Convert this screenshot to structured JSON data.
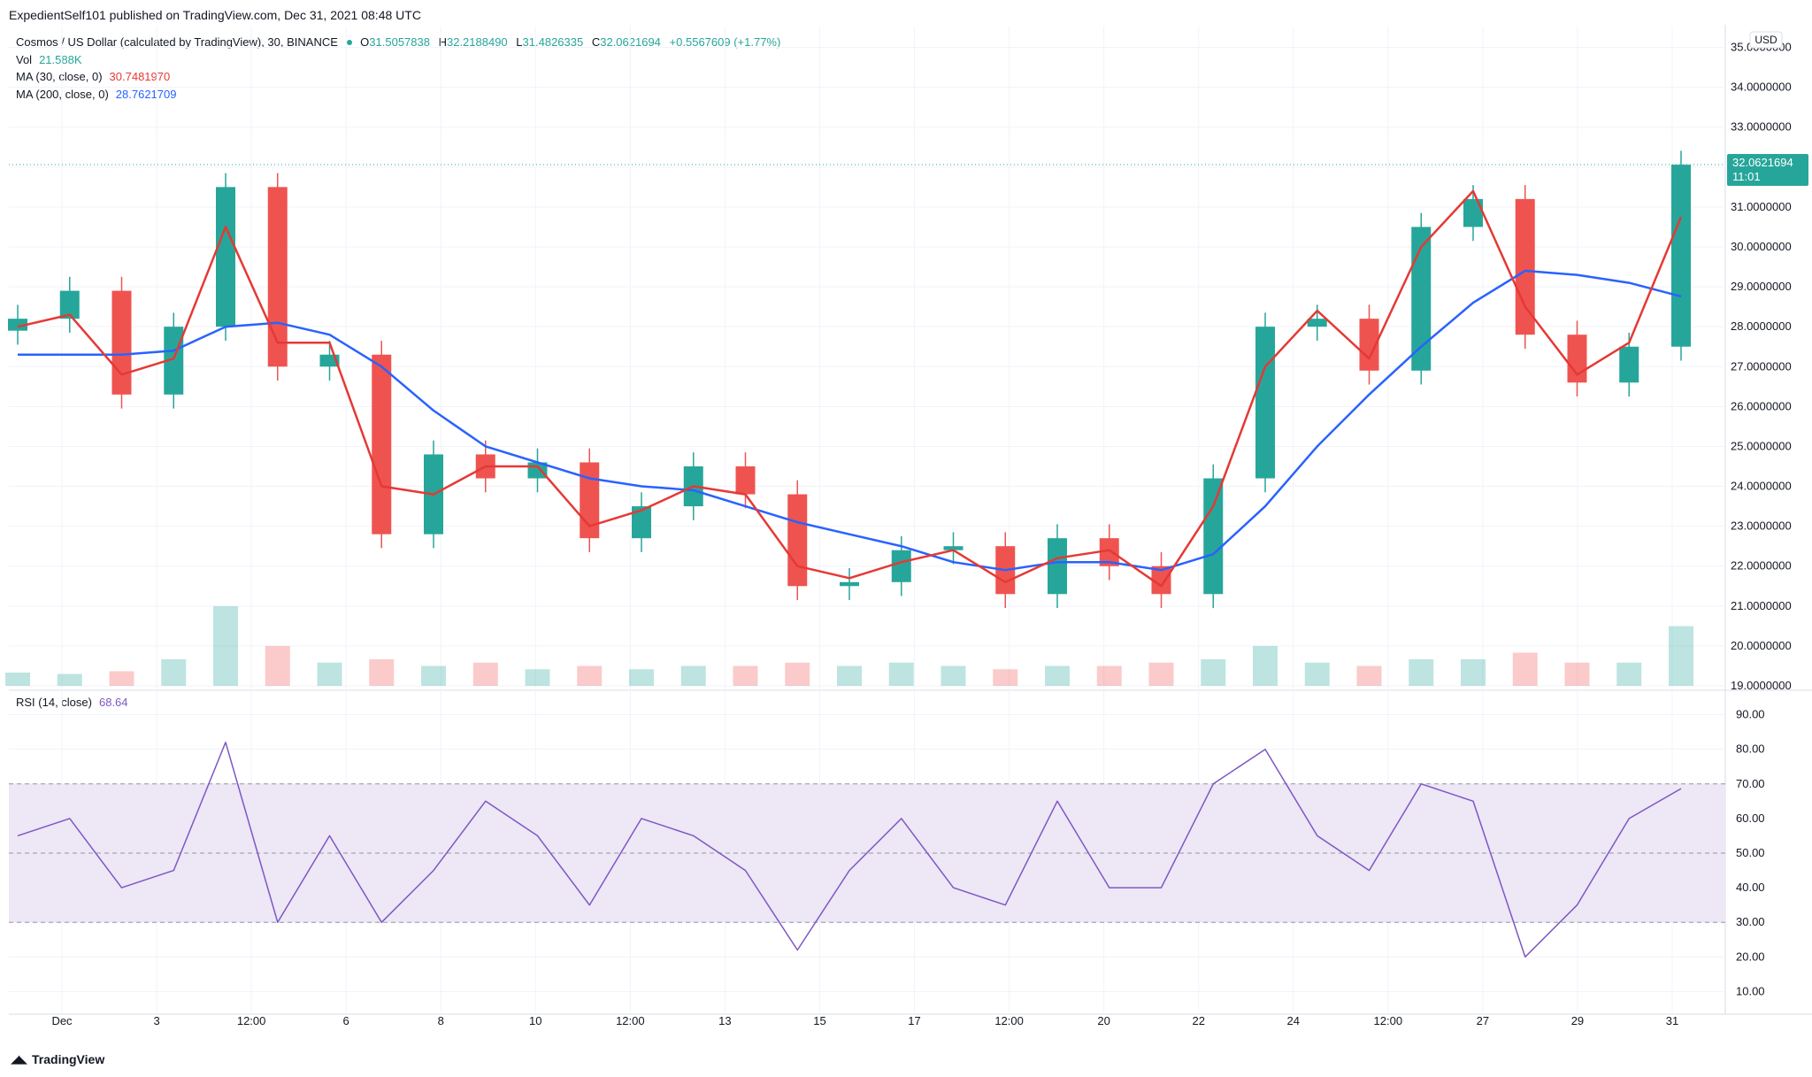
{
  "publisher_line": "ExpedientSelf101 published on TradingView.com, Dec 31, 2021 08:48 UTC",
  "symbol": {
    "title": "Cosmos / US Dollar (calculated by TradingView), 30, BINANCE",
    "o_label": "O",
    "o_value": "31.5057838",
    "h_label": "H",
    "h_value": "32.2188490",
    "l_label": "L",
    "l_value": "31.4826335",
    "c_label": "C",
    "c_value": "32.0621694",
    "change": "+0.5567609 (+1.77%)"
  },
  "indicators": {
    "vol_label": "Vol",
    "vol_value": "21.588K",
    "ma30_label": "MA (30, close, 0)",
    "ma30_value": "30.7481970",
    "ma200_label": "MA (200, close, 0)",
    "ma200_value": "28.7621709",
    "rsi_label": "RSI (14, close)",
    "rsi_value": "68.64"
  },
  "price_axis": {
    "currency": "USD",
    "last_price": "32.0621694",
    "countdown": "11:01",
    "ticks": [
      "35.0000000",
      "34.0000000",
      "33.0000000",
      "32.0000000",
      "31.0000000",
      "30.0000000",
      "29.0000000",
      "28.0000000",
      "27.0000000",
      "26.0000000",
      "25.0000000",
      "24.0000000",
      "23.0000000",
      "22.0000000",
      "21.0000000",
      "20.0000000",
      "19.0000000"
    ]
  },
  "rsi_axis": {
    "ticks": [
      "90.00",
      "80.00",
      "70.00",
      "60.00",
      "50.00",
      "40.00",
      "30.00",
      "20.00",
      "10.00"
    ]
  },
  "time_axis": {
    "labels": [
      "Dec",
      "3",
      "12:00",
      "6",
      "8",
      "10",
      "12:00",
      "13",
      "15",
      "17",
      "12:00",
      "20",
      "22",
      "24",
      "12:00",
      "27",
      "29",
      "31"
    ]
  },
  "colors": {
    "up": "#26a69a",
    "down": "#ef5350",
    "ma30": "#e53935",
    "ma200": "#2962ff",
    "rsi": "#7e57c2",
    "rsi_band": "#ede7f6",
    "grid": "#f0f3fa",
    "text": "#131722"
  },
  "brand": "TradingView",
  "chart_data": [
    {
      "type": "candlestick",
      "title": "Cosmos / US Dollar (calculated by TradingView), 30, BINANCE",
      "ylim": [
        19.0,
        35.3
      ],
      "x": [
        "Nov 30",
        "Dec 1",
        "Dec 2",
        "Dec 3",
        "Dec 3 12:00",
        "Dec 4",
        "Dec 5",
        "Dec 6",
        "Dec 7",
        "Dec 8",
        "Dec 9",
        "Dec 10",
        "Dec 11",
        "Dec 12",
        "Dec 13",
        "Dec 14",
        "Dec 15",
        "Dec 16",
        "Dec 17",
        "Dec 18",
        "Dec 19",
        "Dec 20",
        "Dec 21",
        "Dec 22",
        "Dec 23",
        "Dec 24",
        "Dec 25",
        "Dec 26",
        "Dec 27",
        "Dec 28",
        "Dec 29",
        "Dec 30",
        "Dec 31"
      ],
      "series": [
        {
          "name": "Price",
          "values": [
            28.2,
            28.9,
            26.3,
            28.0,
            31.5,
            27.0,
            27.3,
            22.8,
            24.8,
            24.2,
            24.6,
            22.7,
            23.5,
            24.5,
            23.8,
            21.5,
            21.6,
            22.4,
            22.5,
            21.3,
            22.7,
            22.0,
            21.3,
            24.2,
            28.0,
            28.2,
            26.9,
            30.5,
            31.2,
            27.8,
            26.6,
            27.5,
            32.06
          ]
        },
        {
          "name": "MA (30, close, 0)",
          "values": [
            28.0,
            28.3,
            26.8,
            27.2,
            30.5,
            27.6,
            27.6,
            24.0,
            23.8,
            24.5,
            24.5,
            23.0,
            23.4,
            24.0,
            23.8,
            22.0,
            21.7,
            22.1,
            22.4,
            21.6,
            22.2,
            22.4,
            21.5,
            23.5,
            27.0,
            28.4,
            27.2,
            30.0,
            31.4,
            28.5,
            26.8,
            27.6,
            30.75
          ]
        },
        {
          "name": "MA (200, close, 0)",
          "values": [
            27.3,
            27.3,
            27.3,
            27.4,
            28.0,
            28.1,
            27.8,
            27.0,
            25.9,
            25.0,
            24.6,
            24.2,
            24.0,
            23.9,
            23.5,
            23.1,
            22.8,
            22.5,
            22.1,
            21.9,
            22.1,
            22.1,
            21.9,
            22.3,
            23.5,
            25.0,
            26.3,
            27.5,
            28.6,
            29.4,
            29.3,
            29.1,
            28.76
          ]
        }
      ]
    },
    {
      "type": "bar",
      "title": "Vol",
      "x": [
        "Nov 30",
        "Dec 1",
        "Dec 2",
        "Dec 3",
        "Dec 3 12:00",
        "Dec 4",
        "Dec 5",
        "Dec 6",
        "Dec 7",
        "Dec 8",
        "Dec 9",
        "Dec 10",
        "Dec 11",
        "Dec 12",
        "Dec 13",
        "Dec 14",
        "Dec 15",
        "Dec 16",
        "Dec 17",
        "Dec 18",
        "Dec 19",
        "Dec 20",
        "Dec 21",
        "Dec 22",
        "Dec 23",
        "Dec 24",
        "Dec 25",
        "Dec 26",
        "Dec 27",
        "Dec 28",
        "Dec 29",
        "Dec 30",
        "Dec 31"
      ],
      "values": [
        20,
        18,
        22,
        40,
        120,
        60,
        35,
        40,
        30,
        35,
        25,
        30,
        25,
        30,
        30,
        35,
        30,
        35,
        30,
        25,
        30,
        30,
        35,
        40,
        60,
        35,
        30,
        40,
        40,
        50,
        35,
        35,
        90
      ]
    },
    {
      "type": "line",
      "title": "RSI (14, close)",
      "ylim": [
        5,
        95
      ],
      "bands": [
        30,
        50,
        70
      ],
      "x": [
        "Nov 30",
        "Dec 1",
        "Dec 2",
        "Dec 3",
        "Dec 3 12:00",
        "Dec 4",
        "Dec 5",
        "Dec 6",
        "Dec 7",
        "Dec 8",
        "Dec 9",
        "Dec 10",
        "Dec 11",
        "Dec 12",
        "Dec 13",
        "Dec 14",
        "Dec 15",
        "Dec 16",
        "Dec 17",
        "Dec 18",
        "Dec 19",
        "Dec 20",
        "Dec 21",
        "Dec 22",
        "Dec 23",
        "Dec 24",
        "Dec 25",
        "Dec 26",
        "Dec 27",
        "Dec 28",
        "Dec 29",
        "Dec 30",
        "Dec 31"
      ],
      "series": [
        {
          "name": "RSI (14, close)",
          "values": [
            55,
            60,
            40,
            45,
            82,
            30,
            55,
            30,
            45,
            65,
            55,
            35,
            60,
            55,
            45,
            22,
            45,
            60,
            40,
            35,
            65,
            40,
            40,
            70,
            80,
            55,
            45,
            70,
            65,
            20,
            35,
            60,
            68.64
          ]
        }
      ]
    }
  ]
}
